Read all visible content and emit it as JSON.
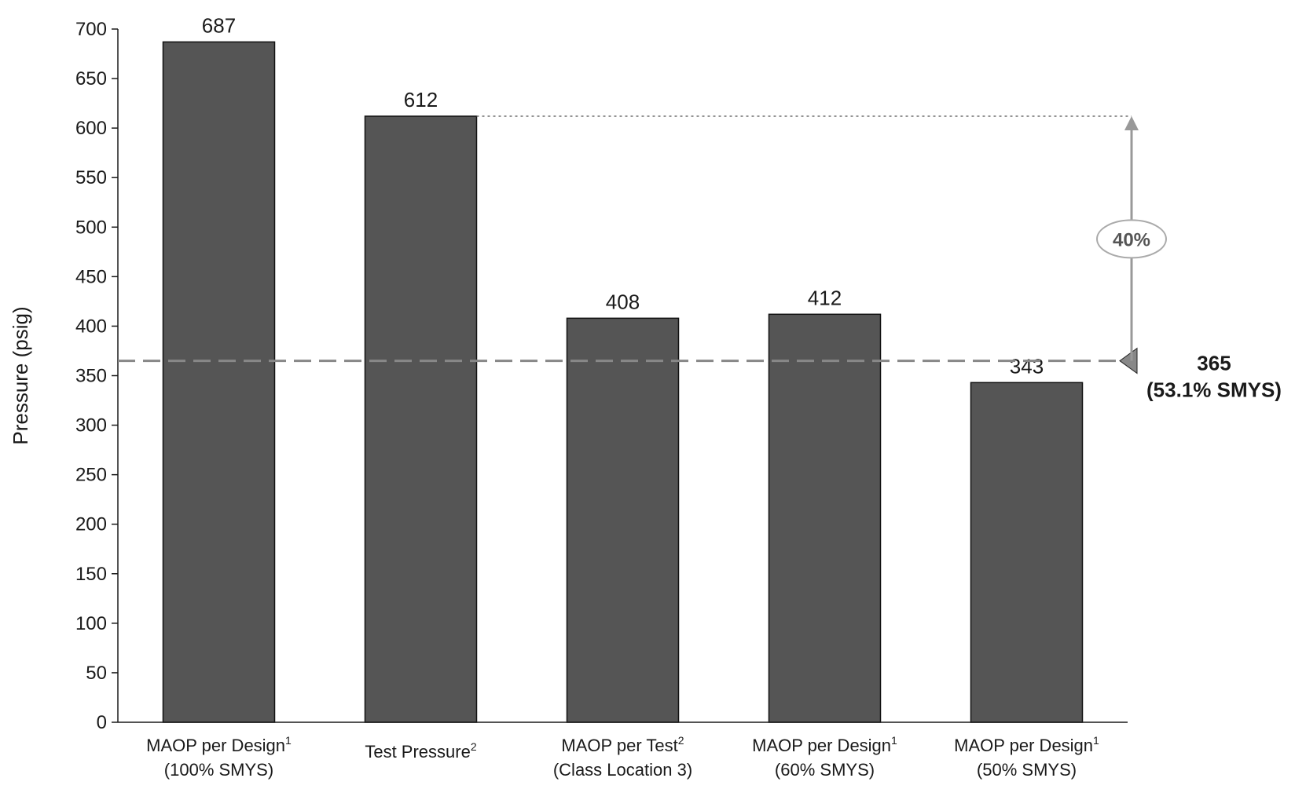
{
  "chart_data": {
    "type": "bar",
    "title": "",
    "xlabel": "",
    "ylabel": "Pressure (psig)",
    "ylim": [
      0,
      700
    ],
    "yticks": [
      0,
      50,
      100,
      150,
      200,
      250,
      300,
      350,
      400,
      450,
      500,
      550,
      600,
      650,
      700
    ],
    "grid": false,
    "categories": [
      {
        "line1": "MAOP per Design",
        "sup": "1",
        "line2": "(100% SMYS)"
      },
      {
        "line1": "Test Pressure",
        "sup": "2",
        "line2": ""
      },
      {
        "line1": "MAOP per Test",
        "sup": "2",
        "line2": "(Class Location 3)"
      },
      {
        "line1": "MAOP per Design",
        "sup": "1",
        "line2": "(60% SMYS)"
      },
      {
        "line1": "MAOP per Design",
        "sup": "1",
        "line2": "(50% SMYS)"
      }
    ],
    "values": [
      687,
      612,
      408,
      412,
      343
    ],
    "data_labels": [
      "687",
      "612",
      "408",
      "412",
      "343"
    ],
    "bar_color": "#555555",
    "reference_line": {
      "value": 365,
      "label_line1": "365",
      "label_line2": "(53.1% SMYS)",
      "color": "#888888",
      "style": "dashed"
    },
    "annotation": {
      "from_value": 365,
      "to_value": 612,
      "label": "40%",
      "color": "#999999"
    }
  }
}
